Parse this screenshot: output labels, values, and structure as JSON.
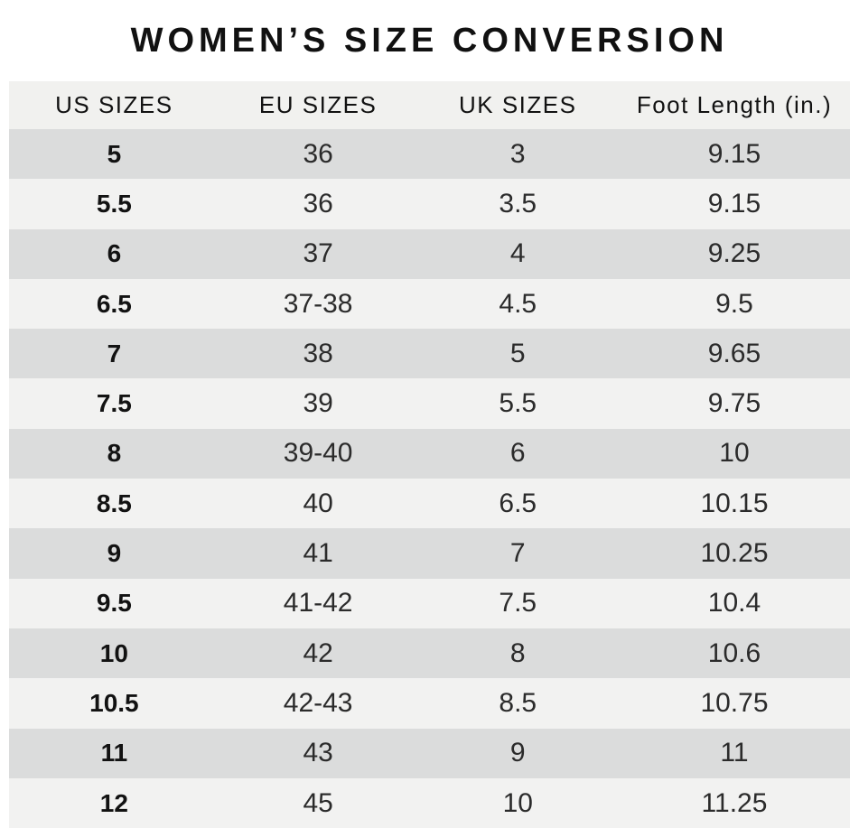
{
  "colors": {
    "header_bg": "#f1f1ef",
    "row_dark": "#dbdcdc",
    "row_light": "#f2f2f1",
    "text_color": "#2b2b2b",
    "bold_color": "#121212",
    "title_color": "#111111",
    "page_bg": "#ffffff"
  },
  "chart_data": {
    "type": "table",
    "title": "WOMEN’S SIZE CONVERSION",
    "columns": [
      "US SIZES",
      "EU SIZES",
      "UK SIZES",
      "Foot Length (in.)"
    ],
    "rows": [
      [
        "5",
        "36",
        "3",
        "9.15"
      ],
      [
        "5.5",
        "36",
        "3.5",
        "9.15"
      ],
      [
        "6",
        "37",
        "4",
        "9.25"
      ],
      [
        "6.5",
        "37-38",
        "4.5",
        "9.5"
      ],
      [
        "7",
        "38",
        "5",
        "9.65"
      ],
      [
        "7.5",
        "39",
        "5.5",
        "9.75"
      ],
      [
        "8",
        "39-40",
        "6",
        "10"
      ],
      [
        "8.5",
        "40",
        "6.5",
        "10.15"
      ],
      [
        "9",
        "41",
        "7",
        "10.25"
      ],
      [
        "9.5",
        "41-42",
        "7.5",
        "10.4"
      ],
      [
        "10",
        "42",
        "8",
        "10.6"
      ],
      [
        "10.5",
        "42-43",
        "8.5",
        "10.75"
      ],
      [
        "11",
        "43",
        "9",
        "11"
      ],
      [
        "12",
        "45",
        "10",
        "11.25"
      ]
    ],
    "layout": {
      "stripe_start": "dark",
      "first_column_bold": true,
      "alignment": "center"
    }
  }
}
